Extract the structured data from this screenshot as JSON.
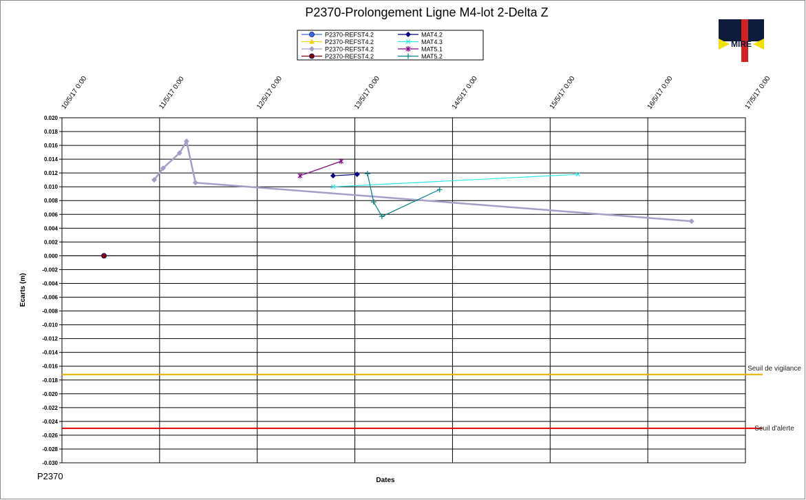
{
  "chart_data": {
    "type": "line",
    "title": "P2370-Prolongement  Ligne M4-lot 2-Delta Z",
    "x_label": "Dates",
    "y_label": "Ecarts (m)",
    "xlim": [
      "2017-05-10 00:00",
      "2017-05-17 00:00"
    ],
    "xticks": [
      {
        "value": "2017-05-10 00:00",
        "label": "10/5/17 0:00"
      },
      {
        "value": "2017-05-11 00:00",
        "label": "11/5/17 0:00"
      },
      {
        "value": "2017-05-12 00:00",
        "label": "12/5/17 0:00"
      },
      {
        "value": "2017-05-13 00:00",
        "label": "13/5/17 0:00"
      },
      {
        "value": "2017-05-14 00:00",
        "label": "14/5/17 0:00"
      },
      {
        "value": "2017-05-15 00:00",
        "label": "15/5/17 0:00"
      },
      {
        "value": "2017-05-16 00:00",
        "label": "16/5/17 0:00"
      },
      {
        "value": "2017-05-17 00:00",
        "label": "17/5/17 0:00"
      }
    ],
    "ylim": [
      -0.03,
      0.02
    ],
    "yticks": [
      {
        "value": 0.02,
        "label": "0.020"
      },
      {
        "value": 0.018,
        "label": "0.018"
      },
      {
        "value": 0.016,
        "label": "0.016"
      },
      {
        "value": 0.014,
        "label": "0.014"
      },
      {
        "value": 0.012,
        "label": "0.012"
      },
      {
        "value": 0.01,
        "label": "0.010"
      },
      {
        "value": 0.008,
        "label": "0.008"
      },
      {
        "value": 0.006,
        "label": "0.006"
      },
      {
        "value": 0.004,
        "label": "0.004"
      },
      {
        "value": 0.002,
        "label": "0.002"
      },
      {
        "value": 0,
        "label": "0.000"
      },
      {
        "value": -0.002,
        "label": "-0.002"
      },
      {
        "value": -0.004,
        "label": "-0.004"
      },
      {
        "value": -0.006,
        "label": "-0.006"
      },
      {
        "value": -0.008,
        "label": "-0.008"
      },
      {
        "value": -0.01,
        "label": "-0.010"
      },
      {
        "value": -0.012,
        "label": "-0.012"
      },
      {
        "value": -0.014,
        "label": "-0.014"
      },
      {
        "value": -0.016,
        "label": "-0.016"
      },
      {
        "value": -0.018,
        "label": "-0.018"
      },
      {
        "value": -0.02,
        "label": "-0.020"
      },
      {
        "value": -0.022,
        "label": "-0.022"
      },
      {
        "value": -0.024,
        "label": "-0.024"
      },
      {
        "value": -0.026,
        "label": "-0.026"
      },
      {
        "value": -0.028,
        "label": "-0.028"
      },
      {
        "value": -0.03,
        "label": "-0.030"
      }
    ],
    "grid": true,
    "series": [
      {
        "name": "P2370-REFST4.2",
        "color": "#3f6fd6",
        "marker": "circle",
        "x": [
          "2017-05-10 10:20"
        ],
        "values": [
          0
        ]
      },
      {
        "name": "P2370-REFST4.2",
        "color": "#e8d800",
        "marker": "triangle",
        "x": [
          "2017-05-10 10:20"
        ],
        "values": [
          0
        ]
      },
      {
        "name": "P2370-REFST4.2",
        "color": "#a49fc6",
        "marker": "diamond",
        "x": [
          "2017-05-10 22:40",
          "2017-05-11 00:52",
          "2017-05-11 04:55",
          "2017-05-11 06:37",
          "2017-05-11 08:49",
          "2017-05-16 10:45"
        ],
        "values": [
          0.011,
          0.0127,
          0.0149,
          0.0166,
          0.0106,
          0.005
        ]
      },
      {
        "name": "P2370-REFST4.2",
        "color": "#800000",
        "marker": "circle",
        "x": [
          "2017-05-10 10:20"
        ],
        "values": [
          0
        ]
      },
      {
        "name": "MAT4.2",
        "color": "#000080",
        "marker": "diamond",
        "x": [
          "2017-05-12 18:39",
          "2017-05-13 00:33"
        ],
        "values": [
          0.0116,
          0.0118
        ]
      },
      {
        "name": "MAT4.3",
        "color": "#2ee6e6",
        "marker": "x",
        "x": [
          "2017-05-12 18:39",
          "2017-05-15 06:50"
        ],
        "values": [
          0.01,
          0.0118
        ]
      },
      {
        "name": "MAT5.1",
        "color": "#800080",
        "marker": "star",
        "x": [
          "2017-05-12 10:31",
          "2017-05-12 20:40"
        ],
        "values": [
          0.0116,
          0.0137
        ]
      },
      {
        "name": "MAT5.2",
        "color": "#008080",
        "marker": "plus",
        "x": [
          "2017-05-13 03:06",
          "2017-05-13 04:37",
          "2017-05-13 06:39",
          "2017-05-13 20:51"
        ],
        "values": [
          0.0119,
          0.0078,
          0.0057,
          0.0096
        ]
      }
    ],
    "thresholds": [
      {
        "label": "Seuil de vigilance",
        "value": -0.0172,
        "color": "#e6b000"
      },
      {
        "label": "Seuil d'alerte",
        "value": -0.025,
        "color": "#e00000"
      }
    ]
  },
  "footer_label": "P2370",
  "logo": "MIRE"
}
